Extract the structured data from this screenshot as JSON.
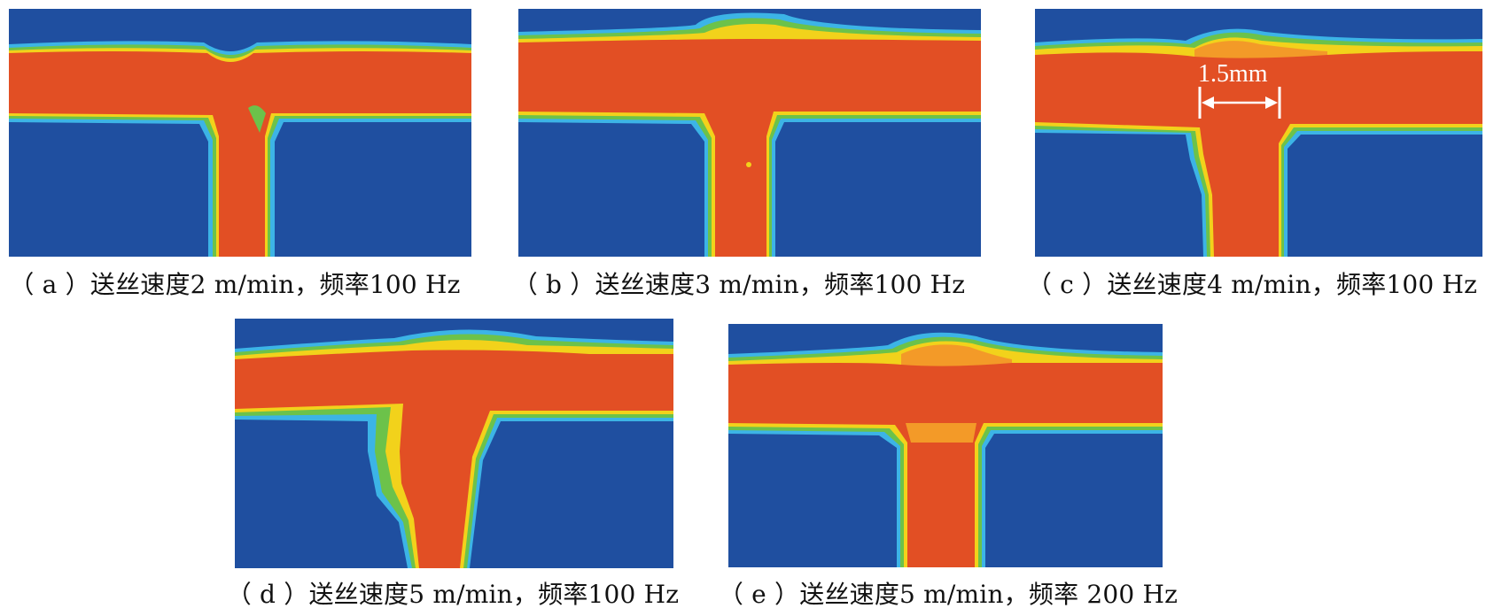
{
  "figure": {
    "panels": [
      {
        "id": "a",
        "caption": "（ a ）送丝速度2 m/min，频率100 Hz"
      },
      {
        "id": "b",
        "caption": "（ b ）送丝速度3 m/min，频率100 Hz"
      },
      {
        "id": "c",
        "caption": "（ c ）送丝速度4 m/min，频率100 Hz",
        "annotation": "1.5mm"
      },
      {
        "id": "d",
        "caption": "（ d ）送丝速度5 m/min，频率100 Hz"
      },
      {
        "id": "e",
        "caption": "（ e ）送丝速度5 m/min，频率 200 Hz"
      }
    ],
    "colors": {
      "background_blue": "#1f4fa0",
      "cyan": "#3cb4e6",
      "green": "#6cc24a",
      "yellow": "#f2d21b",
      "orange": "#f39a28",
      "red": "#e24f24"
    }
  }
}
